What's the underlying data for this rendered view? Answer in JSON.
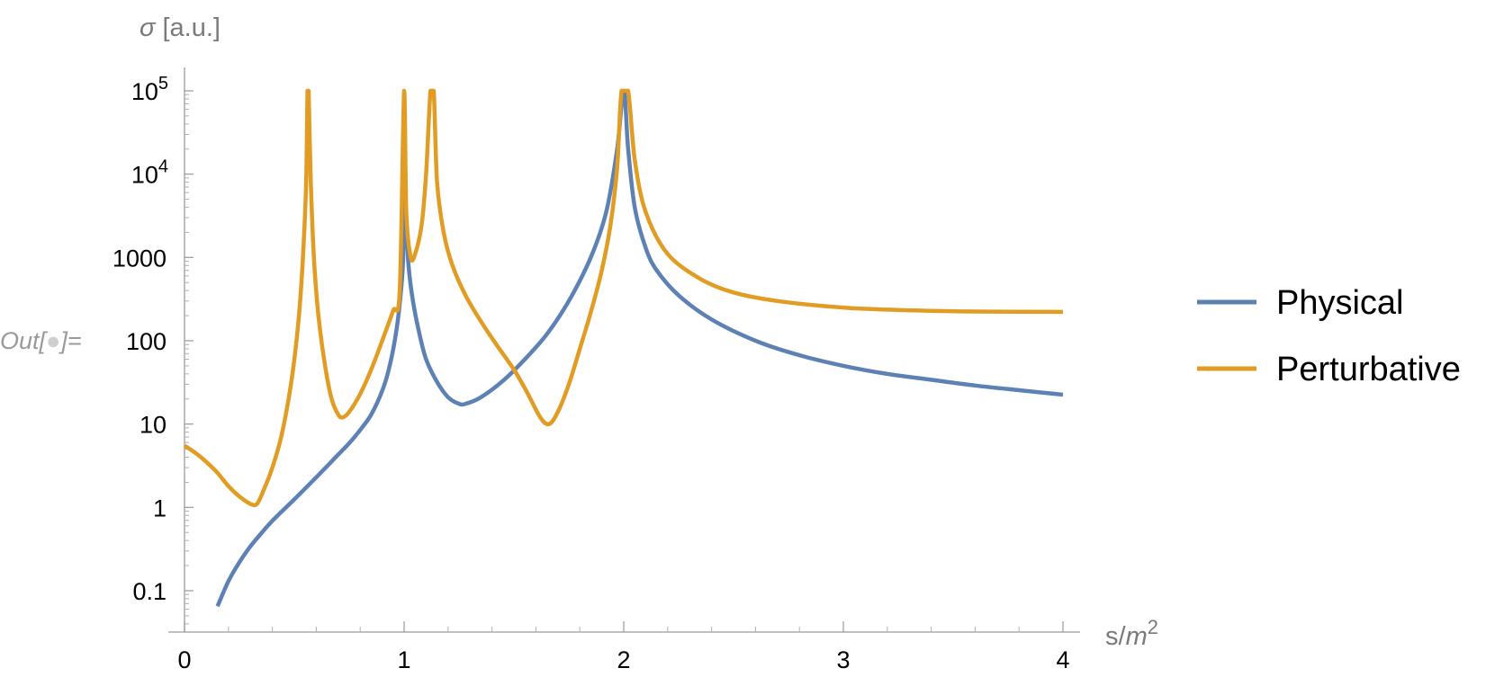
{
  "cell": {
    "out_prefix": "Out[",
    "out_suffix": "]="
  },
  "chart_data": {
    "type": "line",
    "xlabel": {
      "base": "s/",
      "var": "m",
      "exp": "2"
    },
    "ylabel": {
      "sym": "σ",
      "unit": "[a.u.]"
    },
    "xlim": [
      0,
      4
    ],
    "ylim_log10": [
      -1.5,
      5
    ],
    "yscale": "log",
    "grid": false,
    "legend_position": "right",
    "x_ticks": [
      {
        "value": 0,
        "label": "0"
      },
      {
        "value": 1,
        "label": "1"
      },
      {
        "value": 2,
        "label": "2"
      },
      {
        "value": 3,
        "label": "3"
      },
      {
        "value": 4,
        "label": "4"
      }
    ],
    "y_ticks": [
      {
        "log": -1,
        "label": "0.1"
      },
      {
        "log": 0,
        "label": "1"
      },
      {
        "log": 1,
        "label": "10"
      },
      {
        "log": 2,
        "label": "100"
      },
      {
        "log": 3,
        "label": "1000"
      },
      {
        "log": 4,
        "label": "10",
        "sup": "4"
      },
      {
        "log": 5,
        "label": "10",
        "sup": "5"
      }
    ],
    "series": [
      {
        "name": "Physical",
        "color": "#5e81b5",
        "points": [
          [
            0.15,
            0.065
          ],
          [
            0.2,
            0.13
          ],
          [
            0.25,
            0.22
          ],
          [
            0.3,
            0.34
          ],
          [
            0.35,
            0.49
          ],
          [
            0.4,
            0.69
          ],
          [
            0.5,
            1.25
          ],
          [
            0.6,
            2.3
          ],
          [
            0.7,
            4.3
          ],
          [
            0.75,
            5.9
          ],
          [
            0.8,
            8.5
          ],
          [
            0.85,
            13
          ],
          [
            0.9,
            25
          ],
          [
            0.93,
            45
          ],
          [
            0.96,
            110
          ],
          [
            0.98,
            280
          ],
          [
            0.995,
            900
          ],
          [
            1.0,
            8000
          ],
          [
            1.01,
            2500
          ],
          [
            1.02,
            800
          ],
          [
            1.04,
            300
          ],
          [
            1.07,
            120
          ],
          [
            1.1,
            60
          ],
          [
            1.15,
            32
          ],
          [
            1.2,
            21
          ],
          [
            1.25,
            17.5
          ],
          [
            1.28,
            17.5
          ],
          [
            1.35,
            21
          ],
          [
            1.45,
            33
          ],
          [
            1.55,
            60
          ],
          [
            1.65,
            120
          ],
          [
            1.75,
            300
          ],
          [
            1.85,
            1000
          ],
          [
            1.92,
            3500
          ],
          [
            1.97,
            20000
          ],
          [
            2.0,
            100000
          ],
          [
            2.02,
            20000
          ],
          [
            2.05,
            4000
          ],
          [
            2.1,
            1300
          ],
          [
            2.15,
            700
          ],
          [
            2.25,
            350
          ],
          [
            2.4,
            180
          ],
          [
            2.6,
            100
          ],
          [
            2.8,
            67
          ],
          [
            3.0,
            50
          ],
          [
            3.2,
            40
          ],
          [
            3.4,
            34
          ],
          [
            3.6,
            29
          ],
          [
            3.8,
            25.5
          ],
          [
            4.0,
            22.5
          ]
        ]
      },
      {
        "name": "Perturbative",
        "color": "#e19c24",
        "points": [
          [
            0.0,
            5.5
          ],
          [
            0.05,
            4.5
          ],
          [
            0.1,
            3.5
          ],
          [
            0.15,
            2.6
          ],
          [
            0.2,
            1.8
          ],
          [
            0.25,
            1.35
          ],
          [
            0.3,
            1.1
          ],
          [
            0.33,
            1.1
          ],
          [
            0.36,
            1.6
          ],
          [
            0.4,
            3
          ],
          [
            0.44,
            7
          ],
          [
            0.48,
            25
          ],
          [
            0.51,
            100
          ],
          [
            0.53,
            400
          ],
          [
            0.545,
            2000
          ],
          [
            0.555,
            10000
          ],
          [
            0.56,
            100000
          ],
          [
            0.565,
            100000
          ],
          [
            0.575,
            8000
          ],
          [
            0.59,
            900
          ],
          [
            0.61,
            200
          ],
          [
            0.64,
            50
          ],
          [
            0.67,
            20
          ],
          [
            0.7,
            13
          ],
          [
            0.72,
            12
          ],
          [
            0.75,
            14
          ],
          [
            0.8,
            23
          ],
          [
            0.85,
            45
          ],
          [
            0.9,
            100
          ],
          [
            0.95,
            230
          ],
          [
            0.98,
            400
          ],
          [
            1.0,
            100000
          ],
          [
            1.01,
            3500
          ],
          [
            1.03,
            1000
          ],
          [
            1.05,
            1100
          ],
          [
            1.08,
            2500
          ],
          [
            1.1,
            10000
          ],
          [
            1.12,
            100000
          ],
          [
            1.135,
            100000
          ],
          [
            1.15,
            8000
          ],
          [
            1.18,
            2000
          ],
          [
            1.22,
            800
          ],
          [
            1.28,
            350
          ],
          [
            1.35,
            170
          ],
          [
            1.42,
            90
          ],
          [
            1.5,
            45
          ],
          [
            1.56,
            24
          ],
          [
            1.62,
            12
          ],
          [
            1.66,
            10
          ],
          [
            1.7,
            14
          ],
          [
            1.75,
            30
          ],
          [
            1.8,
            80
          ],
          [
            1.85,
            220
          ],
          [
            1.9,
            700
          ],
          [
            1.94,
            2500
          ],
          [
            1.97,
            12000
          ],
          [
            1.99,
            100000
          ],
          [
            2.02,
            100000
          ],
          [
            2.05,
            15000
          ],
          [
            2.1,
            3500
          ],
          [
            2.2,
            1100
          ],
          [
            2.35,
            550
          ],
          [
            2.5,
            380
          ],
          [
            2.7,
            300
          ],
          [
            3.0,
            250
          ],
          [
            3.3,
            232
          ],
          [
            3.6,
            224
          ],
          [
            4.0,
            222
          ]
        ]
      }
    ]
  }
}
